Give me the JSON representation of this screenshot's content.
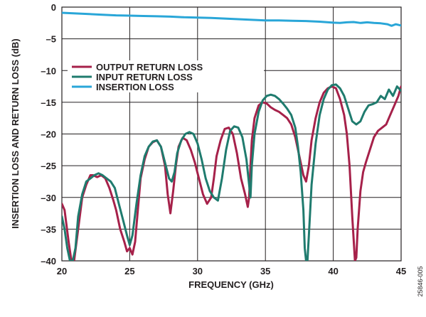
{
  "chart_data": {
    "type": "line",
    "xlabel": "FREQUENCY (GHz)",
    "ylabel": "INSERTION LOSS AND RETURN LOSS (dB)",
    "xlim": [
      20,
      45
    ],
    "ylim": [
      -40,
      0
    ],
    "xticks": [
      "20",
      "25",
      "30",
      "35",
      "40",
      "45"
    ],
    "yticks": [
      "0",
      "–5",
      "–10",
      "–15",
      "–20",
      "–25",
      "–30",
      "–35",
      "–40"
    ],
    "grid": true,
    "legend_position": "top-left",
    "figure_id": "25846-005",
    "series": [
      {
        "name": "OUTPUT RETURN LOSS",
        "color": "#a6214a",
        "x": [
          20.0,
          20.2,
          20.5,
          20.7,
          20.9,
          21.2,
          21.5,
          21.8,
          22.1,
          22.3,
          22.6,
          22.9,
          23.2,
          23.5,
          23.8,
          24.0,
          24.3,
          24.6,
          24.8,
          25.0,
          25.2,
          25.4,
          25.6,
          25.8,
          26.1,
          26.4,
          26.7,
          27.0,
          27.3,
          27.6,
          27.8,
          28.0,
          28.2,
          28.4,
          28.6,
          28.9,
          29.2,
          29.5,
          29.8,
          30.1,
          30.4,
          30.7,
          31.0,
          31.2,
          31.4,
          31.7,
          32.0,
          32.3,
          32.6,
          32.9,
          33.2,
          33.5,
          33.7,
          33.8,
          33.9,
          34.0,
          34.2,
          34.5,
          34.8,
          35.1,
          35.4,
          35.7,
          36.0,
          36.3,
          36.6,
          36.9,
          37.2,
          37.5,
          37.8,
          38.0,
          38.2,
          38.4,
          38.7,
          39.0,
          39.3,
          39.6,
          39.9,
          40.2,
          40.5,
          40.8,
          41.0,
          41.2,
          41.4,
          41.6,
          41.7,
          41.8,
          42.0,
          42.2,
          42.4,
          42.7,
          43.0,
          43.3,
          43.6,
          43.9,
          44.2,
          44.5,
          44.8,
          45.0
        ],
        "values": [
          -31.0,
          -32.0,
          -37.0,
          -40.0,
          -40.0,
          -35.0,
          -30.0,
          -28.0,
          -26.5,
          -26.5,
          -26.8,
          -26.5,
          -27.0,
          -28.5,
          -30.5,
          -32.0,
          -35.0,
          -37.0,
          -38.5,
          -38.0,
          -39.0,
          -37.0,
          -32.0,
          -27.0,
          -24.0,
          -22.0,
          -21.3,
          -21.0,
          -22.0,
          -25.0,
          -29.5,
          -32.5,
          -29.0,
          -25.0,
          -22.0,
          -20.6,
          -21.0,
          -22.5,
          -24.5,
          -27.0,
          -29.5,
          -31.0,
          -30.0,
          -27.0,
          -23.5,
          -21.0,
          -19.2,
          -19.0,
          -20.0,
          -23.0,
          -27.0,
          -29.5,
          -31.5,
          -30.0,
          -25.0,
          -21.0,
          -17.5,
          -15.5,
          -15.0,
          -15.2,
          -15.8,
          -16.2,
          -16.5,
          -17.0,
          -17.5,
          -18.5,
          -20.5,
          -23.5,
          -26.5,
          -27.5,
          -25.0,
          -21.0,
          -17.5,
          -15.0,
          -13.5,
          -12.8,
          -12.5,
          -12.8,
          -14.5,
          -17.0,
          -20.0,
          -25.0,
          -33.0,
          -40.0,
          -39.5,
          -35.0,
          -29.0,
          -26.0,
          -24.5,
          -22.5,
          -20.5,
          -19.5,
          -19.0,
          -18.5,
          -17.0,
          -15.5,
          -14.0,
          -12.5
        ]
      },
      {
        "name": "INPUT RETURN LOSS",
        "color": "#1f7b6e",
        "x": [
          20.0,
          20.2,
          20.4,
          20.6,
          20.8,
          21.0,
          21.2,
          21.5,
          21.8,
          22.1,
          22.4,
          22.7,
          23.0,
          23.3,
          23.6,
          23.9,
          24.2,
          24.5,
          24.8,
          25.0,
          25.2,
          25.5,
          25.8,
          26.1,
          26.4,
          26.7,
          27.0,
          27.3,
          27.6,
          27.9,
          28.1,
          28.3,
          28.5,
          28.8,
          29.1,
          29.4,
          29.7,
          30.0,
          30.3,
          30.6,
          30.9,
          31.2,
          31.5,
          31.8,
          32.1,
          32.4,
          32.7,
          33.0,
          33.3,
          33.6,
          33.8,
          33.9,
          34.0,
          34.2,
          34.5,
          34.8,
          35.1,
          35.4,
          35.7,
          36.0,
          36.3,
          36.6,
          36.9,
          37.2,
          37.4,
          37.6,
          37.8,
          37.9,
          38.0,
          38.1,
          38.2,
          38.4,
          38.7,
          39.0,
          39.3,
          39.6,
          39.9,
          40.2,
          40.5,
          40.8,
          41.1,
          41.4,
          41.7,
          42.0,
          42.3,
          42.6,
          42.9,
          43.2,
          43.5,
          43.8,
          44.1,
          44.4,
          44.7,
          45.0
        ],
        "values": [
          -33.0,
          -35.0,
          -38.0,
          -40.0,
          -40.0,
          -38.0,
          -33.0,
          -29.5,
          -27.5,
          -27.0,
          -26.5,
          -26.2,
          -26.5,
          -27.0,
          -27.5,
          -28.5,
          -31.0,
          -33.5,
          -36.0,
          -37.5,
          -36.0,
          -31.0,
          -26.5,
          -23.5,
          -22.0,
          -21.2,
          -21.0,
          -22.0,
          -24.5,
          -27.0,
          -27.5,
          -26.0,
          -23.0,
          -21.0,
          -20.0,
          -19.7,
          -20.0,
          -21.5,
          -24.0,
          -27.0,
          -29.0,
          -30.0,
          -30.5,
          -27.0,
          -22.5,
          -19.5,
          -18.8,
          -19.0,
          -20.5,
          -24.0,
          -28.0,
          -30.0,
          -25.0,
          -20.0,
          -16.5,
          -14.7,
          -14.0,
          -13.8,
          -14.0,
          -14.5,
          -15.2,
          -16.0,
          -17.0,
          -19.0,
          -22.0,
          -26.0,
          -32.0,
          -38.0,
          -40.0,
          -40.0,
          -36.0,
          -28.0,
          -21.5,
          -17.0,
          -14.5,
          -13.0,
          -12.3,
          -12.2,
          -12.8,
          -14.0,
          -16.0,
          -18.0,
          -18.5,
          -18.0,
          -16.5,
          -15.5,
          -15.3,
          -15.0,
          -14.0,
          -14.5,
          -13.0,
          -14.0,
          -12.5,
          -13.2
        ]
      },
      {
        "name": "INSERTION LOSS",
        "color": "#29a6d8",
        "x": [
          20.0,
          21.0,
          22.0,
          23.0,
          24.0,
          25.0,
          26.0,
          27.0,
          28.0,
          29.0,
          30.0,
          31.0,
          32.0,
          33.0,
          34.0,
          35.0,
          36.0,
          37.0,
          38.0,
          39.0,
          40.0,
          40.5,
          41.0,
          41.5,
          42.0,
          42.5,
          43.0,
          43.5,
          44.0,
          44.3,
          44.6,
          45.0
        ],
        "values": [
          -0.9,
          -1.0,
          -1.1,
          -1.2,
          -1.3,
          -1.35,
          -1.4,
          -1.45,
          -1.5,
          -1.6,
          -1.65,
          -1.7,
          -1.8,
          -1.9,
          -2.0,
          -2.1,
          -2.1,
          -2.15,
          -2.2,
          -2.3,
          -2.45,
          -2.5,
          -2.4,
          -2.35,
          -2.5,
          -2.4,
          -2.5,
          -2.55,
          -2.7,
          -2.95,
          -2.7,
          -2.9
        ]
      }
    ]
  }
}
